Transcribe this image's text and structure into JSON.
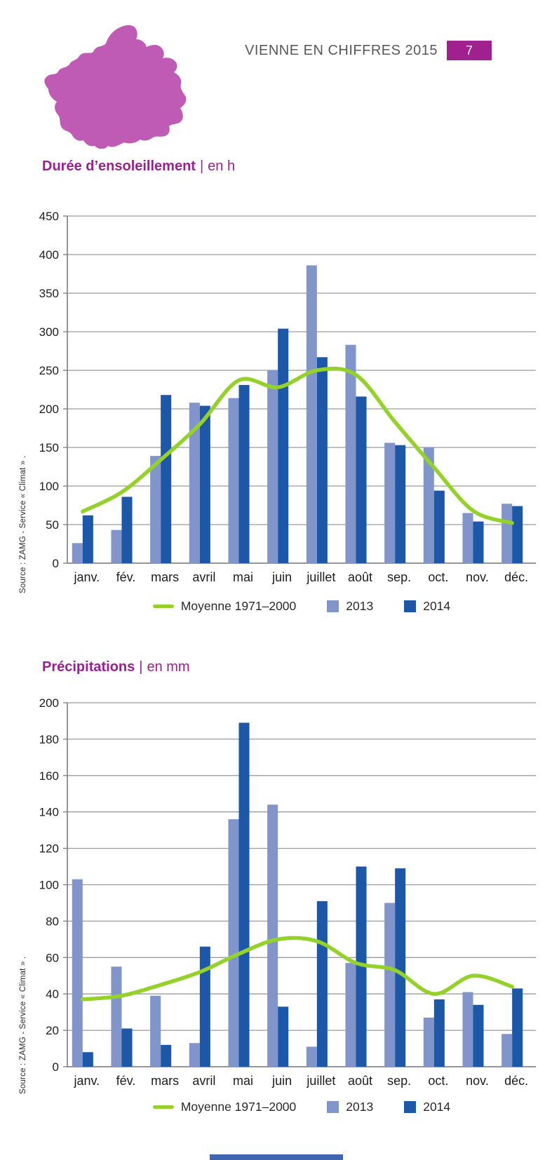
{
  "page": {
    "header": {
      "title": "VIENNE EN CHIFFRES 2015",
      "page_number": "7"
    },
    "title_separator": "|",
    "source_note": "Source : ZAMG - Service « Climat » .",
    "colors": {
      "magenta": "#a0208f",
      "map_pink": "#bf5bb5",
      "light_blue": "#8195cb",
      "dark_blue": "#1d57a8",
      "green": "#94d229",
      "grid_gray": "#9b9b9b",
      "axis_gray": "#7d7d7d",
      "footer_blue": "#4066b2"
    }
  },
  "chart_data": [
    {
      "type": "bar",
      "title": "Durée d’ensoleillement",
      "unit_label": "en h",
      "categories": [
        "janv.",
        "fév.",
        "mars",
        "avril",
        "mai",
        "juin",
        "juillet",
        "août",
        "sep.",
        "oct.",
        "nov.",
        "déc."
      ],
      "series": [
        {
          "name": "2013",
          "kind": "bar",
          "color_key": "light_blue",
          "values": [
            26,
            43,
            139,
            208,
            214,
            250,
            386,
            283,
            156,
            150,
            65,
            77
          ]
        },
        {
          "name": "2014",
          "kind": "bar",
          "color_key": "dark_blue",
          "values": [
            62,
            86,
            218,
            204,
            231,
            304,
            267,
            216,
            153,
            94,
            54,
            74
          ]
        },
        {
          "name": "Moyenne 1971–2000",
          "kind": "line",
          "color_key": "green",
          "values": [
            67,
            92,
            134,
            180,
            237,
            228,
            250,
            244,
            183,
            124,
            68,
            52
          ]
        }
      ],
      "ylim": [
        0,
        450
      ],
      "ystep": 50,
      "grid": true,
      "legend_position": "bottom",
      "source": "Source : ZAMG - Service « Climat » ."
    },
    {
      "type": "bar",
      "title": "Précipitations",
      "unit_label": "en mm",
      "categories": [
        "janv.",
        "fév.",
        "mars",
        "avril",
        "mai",
        "juin",
        "juillet",
        "août",
        "sep.",
        "oct.",
        "nov.",
        "déc."
      ],
      "series": [
        {
          "name": "2013",
          "kind": "bar",
          "color_key": "light_blue",
          "values": [
            103,
            55,
            39,
            13,
            136,
            144,
            11,
            57,
            90,
            27,
            41,
            18
          ]
        },
        {
          "name": "2014",
          "kind": "bar",
          "color_key": "dark_blue",
          "values": [
            8,
            21,
            12,
            66,
            189,
            33,
            91,
            110,
            109,
            37,
            34,
            43
          ]
        },
        {
          "name": "Moyenne 1971–2000",
          "kind": "line",
          "color_key": "green",
          "values": [
            37,
            39,
            45,
            52,
            62,
            70,
            69,
            57,
            53,
            40,
            50,
            44
          ]
        }
      ],
      "ylim": [
        0,
        200
      ],
      "ystep": 20,
      "grid": true,
      "legend_position": "bottom",
      "source": "Source : ZAMG - Service « Climat » ."
    }
  ]
}
